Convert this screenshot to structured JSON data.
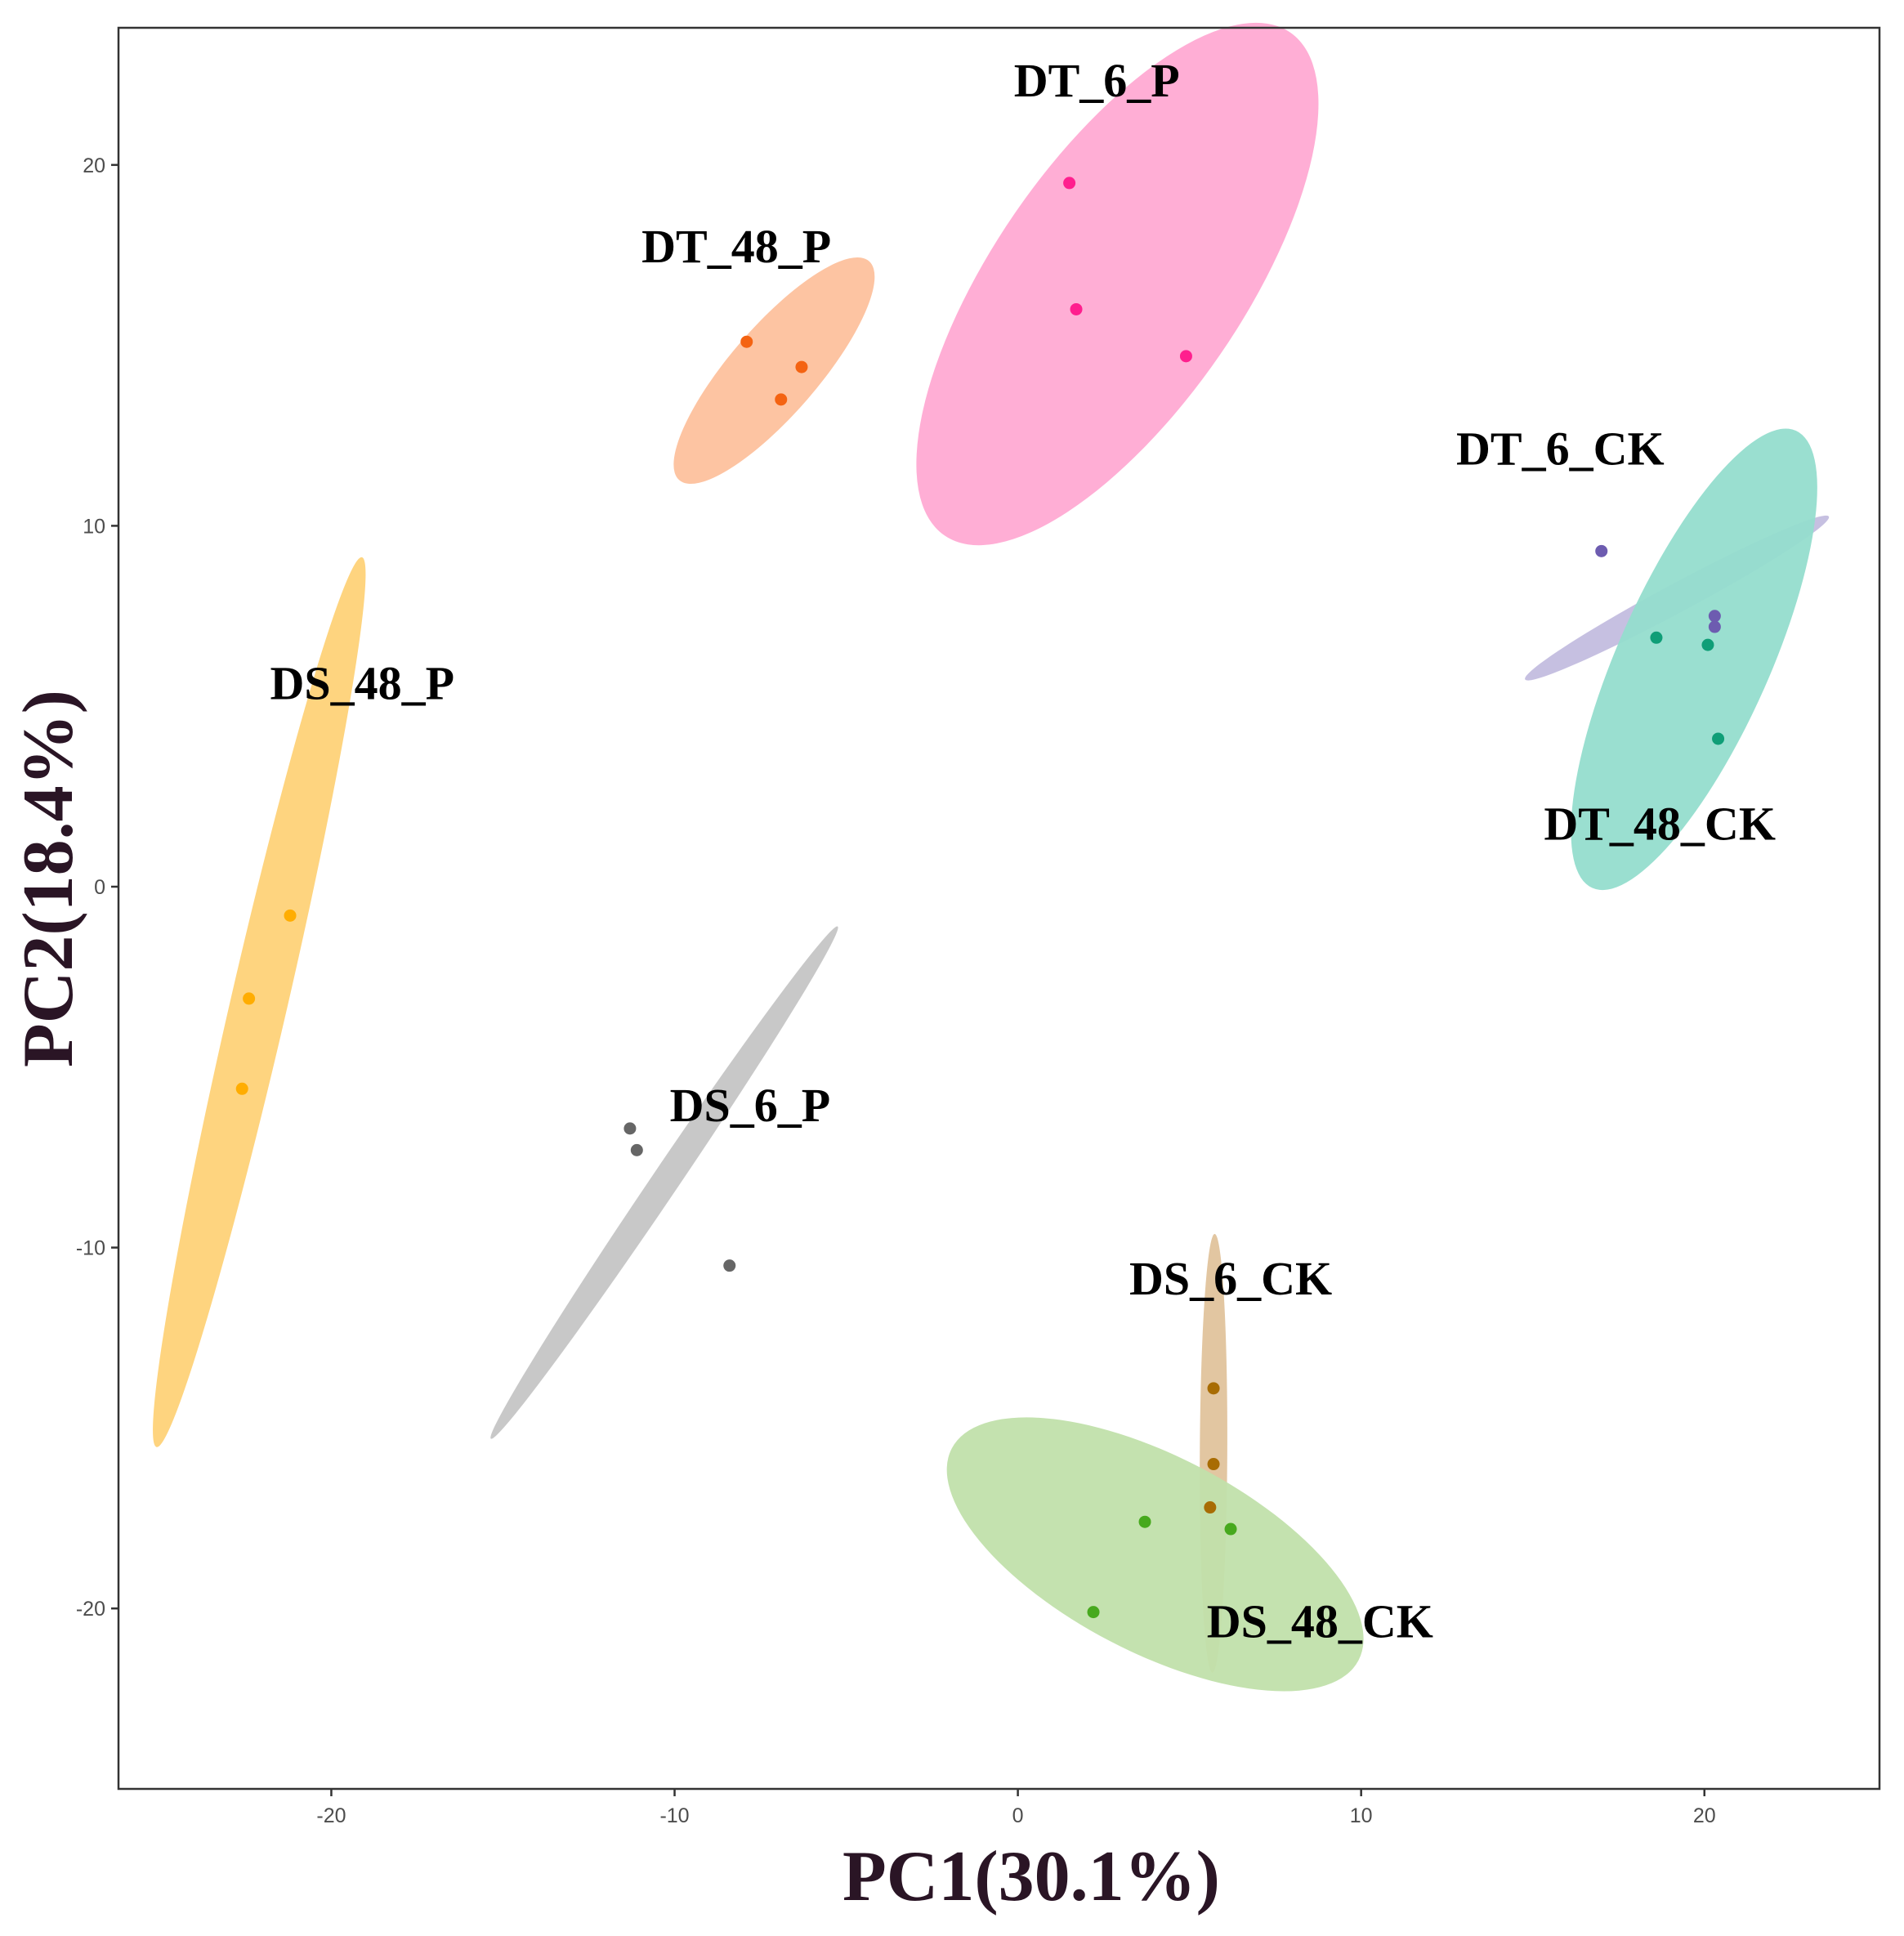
{
  "chart_data": {
    "type": "scatter",
    "title": "",
    "xlabel": "PC1(30.1%)",
    "ylabel": "PC2(18.4%)",
    "xlim": [
      -26.2,
      25.1
    ],
    "ylim": [
      -25.0,
      23.8
    ],
    "xticks": [
      -20,
      -10,
      0,
      10,
      20
    ],
    "yticks": [
      20,
      10,
      0,
      -10,
      -20
    ],
    "xtick_labels": [
      "-20",
      "-10",
      "0",
      "10",
      "20"
    ],
    "ytick_labels": [
      "20",
      "10",
      "0",
      "-10",
      "-20"
    ],
    "grid": false,
    "legend": "none",
    "series": [
      {
        "name": "DT_6_P",
        "color": "#ff1f8e",
        "ellipse_color": "#ffaad3",
        "points": [
          [
            1.5,
            19.5
          ],
          [
            1.7,
            16.0
          ],
          [
            4.9,
            14.7
          ]
        ],
        "ellipse": {
          "cx": 2.9,
          "cy": 16.7,
          "rx": 8.89,
          "ry": 3.63,
          "angle": -55.5
        }
      },
      {
        "name": "DT_48_P",
        "color": "#f46312",
        "ellipse_color": "#fdc19d",
        "points": [
          [
            -7.9,
            15.1
          ],
          [
            -6.3,
            14.4
          ],
          [
            -6.9,
            13.5
          ]
        ],
        "ellipse": {
          "cx": -7.1,
          "cy": 14.3,
          "rx": 4.22,
          "ry": 1.28,
          "angle": -49.1
        }
      },
      {
        "name": "DT_6_CK",
        "color": "#6d5cb0",
        "ellipse_color": "#c3bddf",
        "points": [
          [
            17.0,
            9.3
          ],
          [
            20.3,
            7.5
          ],
          [
            20.3,
            7.2
          ]
        ],
        "ellipse": {
          "cx": 19.2,
          "cy": 8.0,
          "rx": 5.02,
          "ry": 0.42,
          "angle": -28.2
        }
      },
      {
        "name": "DT_48_CK",
        "color": "#0f9e77",
        "ellipse_color": "#95ddcd",
        "points": [
          [
            18.6,
            6.9
          ],
          [
            20.1,
            6.7
          ],
          [
            20.4,
            4.1
          ]
        ],
        "ellipse": {
          "cx": 19.7,
          "cy": 6.3,
          "rx": 7.29,
          "ry": 2.21,
          "angle": -66.0
        }
      },
      {
        "name": "DS_48_P",
        "color": "#ffad01",
        "ellipse_color": "#fed278",
        "points": [
          [
            -21.2,
            -0.8
          ],
          [
            -22.4,
            -3.1
          ],
          [
            -22.6,
            -5.6
          ]
        ],
        "ellipse": {
          "cx": -22.1,
          "cy": -3.2,
          "rx": 13.3,
          "ry": 0.83,
          "angle": -77.0
        }
      },
      {
        "name": "DS_6_P",
        "color": "#666666",
        "ellipse_color": "#c5c5c5",
        "points": [
          [
            -11.3,
            -6.7
          ],
          [
            -11.1,
            -7.3
          ],
          [
            -8.4,
            -10.5
          ]
        ],
        "ellipse": {
          "cx": -10.3,
          "cy": -8.2,
          "rx": 9.01,
          "ry": 0.4,
          "angle": -55.9
        }
      },
      {
        "name": "DS_6_CK",
        "color": "#a86c03",
        "ellipse_color": "#e0c39c",
        "points": [
          [
            5.7,
            -13.9
          ],
          [
            5.7,
            -16.0
          ],
          [
            5.6,
            -17.2
          ]
        ],
        "ellipse": {
          "cx": 5.7,
          "cy": -15.7,
          "rx": 6.39,
          "ry": 0.4,
          "angle": -89.7
        }
      },
      {
        "name": "DS_48_CK",
        "color": "#47a91e",
        "ellipse_color": "#c1e0ab",
        "points": [
          [
            3.7,
            -17.6
          ],
          [
            6.2,
            -17.8
          ],
          [
            2.2,
            -20.1
          ]
        ],
        "ellipse": {
          "cx": 4.0,
          "cy": -18.5,
          "rx": 6.68,
          "ry": 2.85,
          "angle": 27.5
        }
      }
    ],
    "annotations": [
      {
        "text": "DT_6_P",
        "x": 2.3,
        "y": 21.9
      },
      {
        "text": "DT_48_P",
        "x": -8.2,
        "y": 17.3
      },
      {
        "text": "DT_6_CK",
        "x": 15.8,
        "y": 11.7
      },
      {
        "text": "DT_48_CK",
        "x": 18.7,
        "y": 1.3
      },
      {
        "text": "DS_48_P",
        "x": -19.1,
        "y": 5.2
      },
      {
        "text": "DS_6_P",
        "x": -7.8,
        "y": -6.5
      },
      {
        "text": "DS_6_CK",
        "x": 6.2,
        "y": -11.3
      },
      {
        "text": "DS_48_CK",
        "x": 8.8,
        "y": -20.8
      }
    ]
  }
}
